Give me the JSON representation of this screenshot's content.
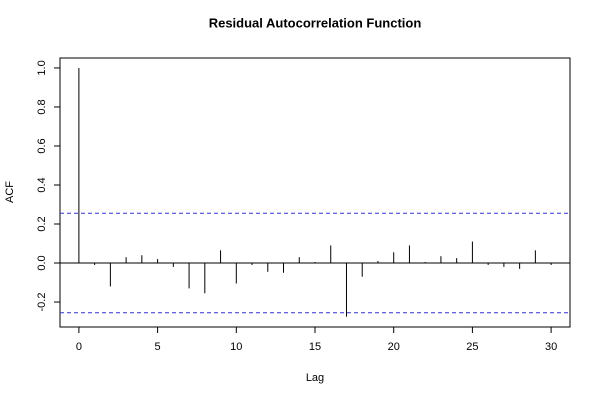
{
  "chart_data": {
    "type": "bar",
    "title": "Residual Autocorrelation Function",
    "x_label": "Lag",
    "y_label": "ACF",
    "x": [
      0,
      1,
      2,
      3,
      4,
      5,
      6,
      7,
      8,
      9,
      10,
      11,
      12,
      13,
      14,
      15,
      16,
      17,
      18,
      19,
      20,
      21,
      22,
      23,
      24,
      25,
      26,
      27,
      28,
      29,
      30
    ],
    "values": [
      1.0,
      -0.01,
      -0.12,
      0.03,
      0.04,
      0.02,
      -0.02,
      -0.13,
      -0.155,
      0.065,
      -0.105,
      -0.01,
      -0.045,
      -0.05,
      0.03,
      0.005,
      0.09,
      -0.275,
      -0.07,
      0.01,
      0.055,
      0.09,
      0.005,
      0.035,
      0.025,
      0.11,
      -0.01,
      -0.02,
      -0.03,
      0.065,
      -0.01
    ],
    "color": "#000000",
    "confidence_bound": 0.255,
    "confidence_color": "#3333cc",
    "xlim": [
      -1.2,
      31.2
    ],
    "xticks": [
      0,
      5,
      10,
      15,
      20,
      25,
      30
    ],
    "ylim": [
      -0.328,
      1.051
    ],
    "yticks": [
      -0.2,
      {
        "value": 0,
        "label": "0.0"
      },
      0.2,
      0.4,
      0.6,
      0.8,
      {
        "value": 1,
        "label": "1.0"
      }
    ]
  }
}
